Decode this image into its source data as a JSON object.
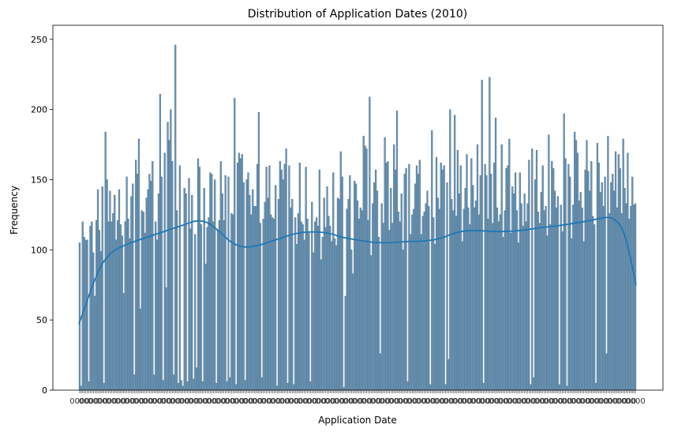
{
  "chart_data": {
    "type": "bar",
    "title": "Distribution of Application Dates (2010)",
    "xlabel": "Application Date",
    "ylabel": "Frequency",
    "ylim": [
      0,
      260
    ],
    "yticks": [
      0,
      50,
      100,
      150,
      200,
      250
    ],
    "xtick_labels_note": "",
    "grid": false,
    "bar_color": "#6b95b5",
    "bar_edge_color": "#3d5d78",
    "kde_color": "#1f77b4",
    "series": [
      {
        "values": [
          105,
          3,
          120,
          109,
          107,
          107,
          6,
          117,
          120,
          98,
          67,
          121,
          143,
          114,
          99,
          145,
          5,
          184,
          150,
          120,
          142,
          120,
          126,
          139,
          107,
          121,
          143,
          118,
          110,
          69,
          120,
          152,
          122,
          108,
          138,
          147,
          11,
          164,
          154,
          179,
          58,
          128,
          127,
          112,
          137,
          143,
          154,
          149,
          163,
          11,
          120,
          107,
          140,
          211,
          152,
          7,
          169,
          73,
          191,
          178,
          200,
          163,
          11,
          246,
          128,
          5,
          160,
          7,
          3,
          144,
          140,
          6,
          151,
          115,
          139,
          8,
          111,
          16,
          165,
          159,
          118,
          6,
          144,
          90,
          116,
          123,
          155,
          154,
          120,
          150,
          5,
          114,
          121,
          163,
          140,
          121,
          153,
          6,
          152,
          9,
          126,
          125,
          208,
          4,
          162,
          169,
          165,
          168,
          148,
          7,
          150,
          155,
          139,
          125,
          143,
          131,
          131,
          161,
          198,
          119,
          9,
          122,
          134,
          159,
          137,
          160,
          125,
          123,
          122,
          146,
          3,
          136,
          163,
          157,
          150,
          161,
          172,
          5,
          160,
          130,
          136,
          4,
          123,
          104,
          126,
          162,
          120,
          118,
          107,
          159,
          122,
          112,
          6,
          134,
          98,
          120,
          123,
          117,
          157,
          93,
          109,
          137,
          116,
          145,
          124,
          117,
          106,
          155,
          108,
          103,
          137,
          136,
          170,
          152,
          2,
          67,
          129,
          136,
          153,
          100,
          83,
          149,
          147,
          135,
          122,
          130,
          128,
          181,
          174,
          172,
          121,
          209,
          96,
          133,
          148,
          157,
          142,
          109,
          26,
          133,
          119,
          180,
          162,
          163,
          114,
          144,
          119,
          175,
          157,
          199,
          127,
          120,
          140,
          100,
          154,
          158,
          6,
          161,
          111,
          125,
          129,
          147,
          160,
          154,
          164,
          111,
          124,
          127,
          133,
          142,
          131,
          4,
          185,
          123,
          104,
          166,
          137,
          129,
          162,
          157,
          160,
          4,
          148,
          22,
          200,
          136,
          128,
          196,
          124,
          171,
          140,
          160,
          106,
          129,
          144,
          168,
          130,
          118,
          165,
          146,
          130,
          135,
          175,
          125,
          153,
          221,
          5,
          161,
          153,
          122,
          223,
          154,
          119,
          162,
          194,
          130,
          120,
          125,
          175,
          109,
          128,
          158,
          160,
          179,
          112,
          145,
          140,
          155,
          128,
          105,
          155,
          133,
          117,
          140,
          120,
          133,
          164,
          4,
          172,
          9,
          150,
          171,
          127,
          119,
          141,
          160,
          128,
          131,
          110,
          182,
          118,
          163,
          158,
          142,
          130,
          138,
          4,
          132,
          113,
          197,
          165,
          3,
          161,
          152,
          108,
          132,
          184,
          178,
          169,
          135,
          141,
          130,
          106,
          157,
          178,
          156,
          142,
          163,
          124,
          118,
          5,
          176,
          162,
          141,
          148,
          131,
          152,
          26,
          181,
          126,
          148,
          154,
          142,
          170,
          130,
          168,
          158,
          126,
          179,
          144,
          133,
          169,
          122,
          131,
          152,
          132,
          133
        ]
      }
    ],
    "kde": {
      "x_frac": [
        0,
        0.02,
        0.04,
        0.06,
        0.08,
        0.1,
        0.13,
        0.16,
        0.19,
        0.21,
        0.23,
        0.25,
        0.27,
        0.29,
        0.31,
        0.33,
        0.36,
        0.39,
        0.42,
        0.45,
        0.47,
        0.5,
        0.53,
        0.56,
        0.59,
        0.62,
        0.65,
        0.68,
        0.71,
        0.74,
        0.77,
        0.8,
        0.83,
        0.86,
        0.89,
        0.92,
        0.94,
        0.96,
        0.98,
        1.0
      ],
      "y": [
        47,
        70,
        90,
        99,
        103,
        106,
        110,
        114,
        118,
        121,
        120,
        114,
        106,
        102,
        102,
        104,
        108,
        112,
        113,
        112,
        109,
        107,
        105,
        105,
        106,
        106,
        108,
        113,
        114,
        113,
        113,
        114,
        116,
        117,
        119,
        121,
        123,
        123,
        113,
        75
      ]
    }
  }
}
